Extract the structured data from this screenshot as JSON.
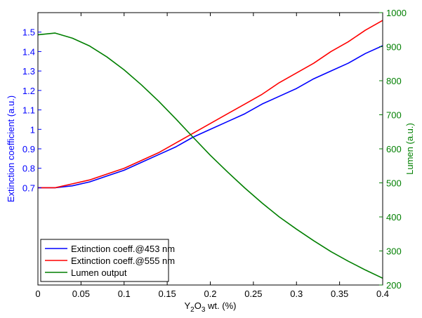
{
  "chart_data": {
    "type": "line",
    "xlabel_parts": [
      "Y",
      "2",
      "O",
      "3",
      " wt. (%)"
    ],
    "ylabel_left": "Extinction coefficient (a.u.)",
    "ylabel_right": "Lumen (a.u.)",
    "xlim": [
      0,
      0.4
    ],
    "ylim_left": [
      0.2,
      1.6
    ],
    "ylim_right": [
      200,
      1000
    ],
    "x_ticks": [
      "0",
      "0.05",
      "0.1",
      "0.15",
      "0.2",
      "0.25",
      "0.3",
      "0.35",
      "0.4"
    ],
    "y_left_ticks": [
      "0.7",
      "0.8",
      "0.9",
      "1",
      "1.1",
      "1.2",
      "1.3",
      "1.4",
      "1.5"
    ],
    "y_right_ticks": [
      "200",
      "300",
      "400",
      "500",
      "600",
      "700",
      "800",
      "900",
      "1000"
    ],
    "grid": false,
    "legend_position": "bottom-left",
    "colors": {
      "left_axis": "#0000ff",
      "right_axis": "#007f00",
      "s453": "#0000ff",
      "s555": "#ff0000",
      "lumen": "#007f00"
    },
    "series": [
      {
        "name": "Extinction coeff.@453 nm",
        "axis": "left",
        "x": [
          0,
          0.02,
          0.04,
          0.06,
          0.08,
          0.1,
          0.12,
          0.14,
          0.16,
          0.18,
          0.2,
          0.22,
          0.24,
          0.26,
          0.28,
          0.3,
          0.32,
          0.34,
          0.36,
          0.38,
          0.4
        ],
        "y": [
          0.7,
          0.7,
          0.71,
          0.73,
          0.76,
          0.79,
          0.83,
          0.87,
          0.91,
          0.96,
          1.0,
          1.04,
          1.08,
          1.13,
          1.17,
          1.21,
          1.26,
          1.3,
          1.34,
          1.39,
          1.43
        ]
      },
      {
        "name": "Extinction coeff.@555 nm",
        "axis": "left",
        "x": [
          0,
          0.02,
          0.04,
          0.06,
          0.08,
          0.1,
          0.12,
          0.14,
          0.16,
          0.18,
          0.2,
          0.22,
          0.24,
          0.26,
          0.28,
          0.3,
          0.32,
          0.34,
          0.36,
          0.38,
          0.4
        ],
        "y": [
          0.7,
          0.7,
          0.72,
          0.74,
          0.77,
          0.8,
          0.84,
          0.88,
          0.93,
          0.98,
          1.03,
          1.08,
          1.13,
          1.18,
          1.24,
          1.29,
          1.34,
          1.4,
          1.45,
          1.51,
          1.56
        ]
      },
      {
        "name": "Lumen output",
        "axis": "right",
        "x": [
          0,
          0.02,
          0.04,
          0.06,
          0.08,
          0.1,
          0.12,
          0.14,
          0.16,
          0.18,
          0.2,
          0.22,
          0.24,
          0.26,
          0.28,
          0.3,
          0.32,
          0.34,
          0.36,
          0.38,
          0.4
        ],
        "y": [
          935,
          940,
          925,
          902,
          870,
          832,
          788,
          740,
          688,
          634,
          581,
          532,
          485,
          441,
          400,
          364,
          330,
          298,
          270,
          244,
          220
        ]
      }
    ]
  }
}
